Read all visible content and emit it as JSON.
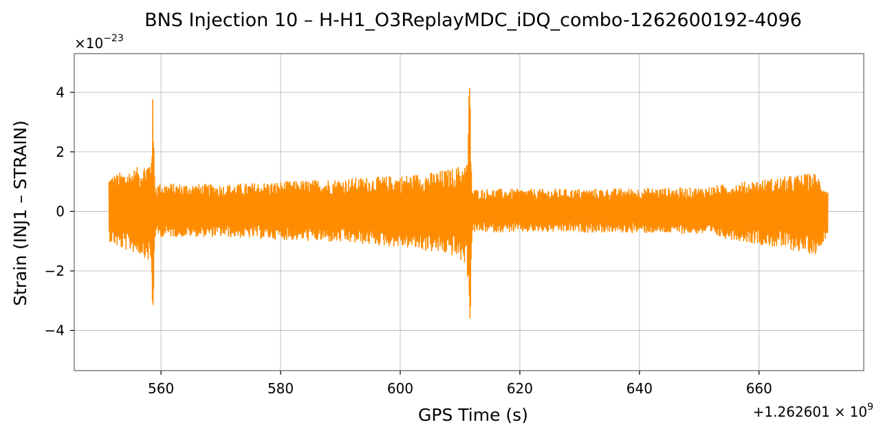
{
  "chart_data": {
    "type": "line",
    "title": "BNS Injection 10 – H-H1_O3ReplayMDC_iDQ_combo-1262600192-4096",
    "xlabel": "GPS Time (s)",
    "ylabel": "Strain (INJ1 – STRAIN)",
    "x_offset_label": "+1.262601",
    "x_offset_times": "×",
    "x_offset_base": "10",
    "x_offset_exp": "9",
    "y_scale_times": "×",
    "y_scale_base": "10",
    "y_scale_exp": "−23",
    "xlim": [
      545.5,
      677.5
    ],
    "ylim": [
      -5.35,
      5.3
    ],
    "x_ticks": [
      {
        "value": 560,
        "label": "560"
      },
      {
        "value": 580,
        "label": "580"
      },
      {
        "value": 600,
        "label": "600"
      },
      {
        "value": 620,
        "label": "620"
      },
      {
        "value": 640,
        "label": "640"
      },
      {
        "value": 660,
        "label": "660"
      }
    ],
    "y_ticks": [
      {
        "value": 4,
        "label": "4"
      },
      {
        "value": 2,
        "label": "2"
      },
      {
        "value": 0,
        "label": "0"
      },
      {
        "value": -2,
        "label": "−2"
      },
      {
        "value": -4,
        "label": "−4"
      }
    ],
    "grid": true,
    "series": [
      {
        "color": "#ff8c00",
        "x_start": 551.3,
        "x_end": 671.5,
        "envelope": [
          {
            "x": 551.3,
            "upper": 1.2,
            "lower": -1.0
          },
          {
            "x": 553.0,
            "upper": 1.3,
            "lower": -1.25
          },
          {
            "x": 555.0,
            "upper": 1.4,
            "lower": -1.35
          },
          {
            "x": 557.0,
            "upper": 1.55,
            "lower": -1.5
          },
          {
            "x": 558.3,
            "upper": 1.8,
            "lower": -1.75
          },
          {
            "x": 558.6,
            "upper": 3.9,
            "lower": -4.2
          },
          {
            "x": 559.0,
            "upper": 0.95,
            "lower": -0.85
          },
          {
            "x": 570.0,
            "upper": 0.9,
            "lower": -0.85
          },
          {
            "x": 580.0,
            "upper": 1.0,
            "lower": -0.95
          },
          {
            "x": 590.0,
            "upper": 1.1,
            "lower": -1.05
          },
          {
            "x": 600.0,
            "upper": 1.2,
            "lower": -1.2
          },
          {
            "x": 605.0,
            "upper": 1.3,
            "lower": -1.35
          },
          {
            "x": 609.0,
            "upper": 1.45,
            "lower": -1.5
          },
          {
            "x": 611.2,
            "upper": 1.65,
            "lower": -1.85
          },
          {
            "x": 611.6,
            "upper": 4.8,
            "lower": -4.85
          },
          {
            "x": 612.0,
            "upper": 0.75,
            "lower": -0.7
          },
          {
            "x": 630.0,
            "upper": 0.75,
            "lower": -0.7
          },
          {
            "x": 650.0,
            "upper": 0.8,
            "lower": -0.75
          },
          {
            "x": 669.5,
            "upper": 1.3,
            "lower": -1.45
          },
          {
            "x": 671.5,
            "upper": 0.7,
            "lower": -0.75
          }
        ]
      }
    ]
  }
}
